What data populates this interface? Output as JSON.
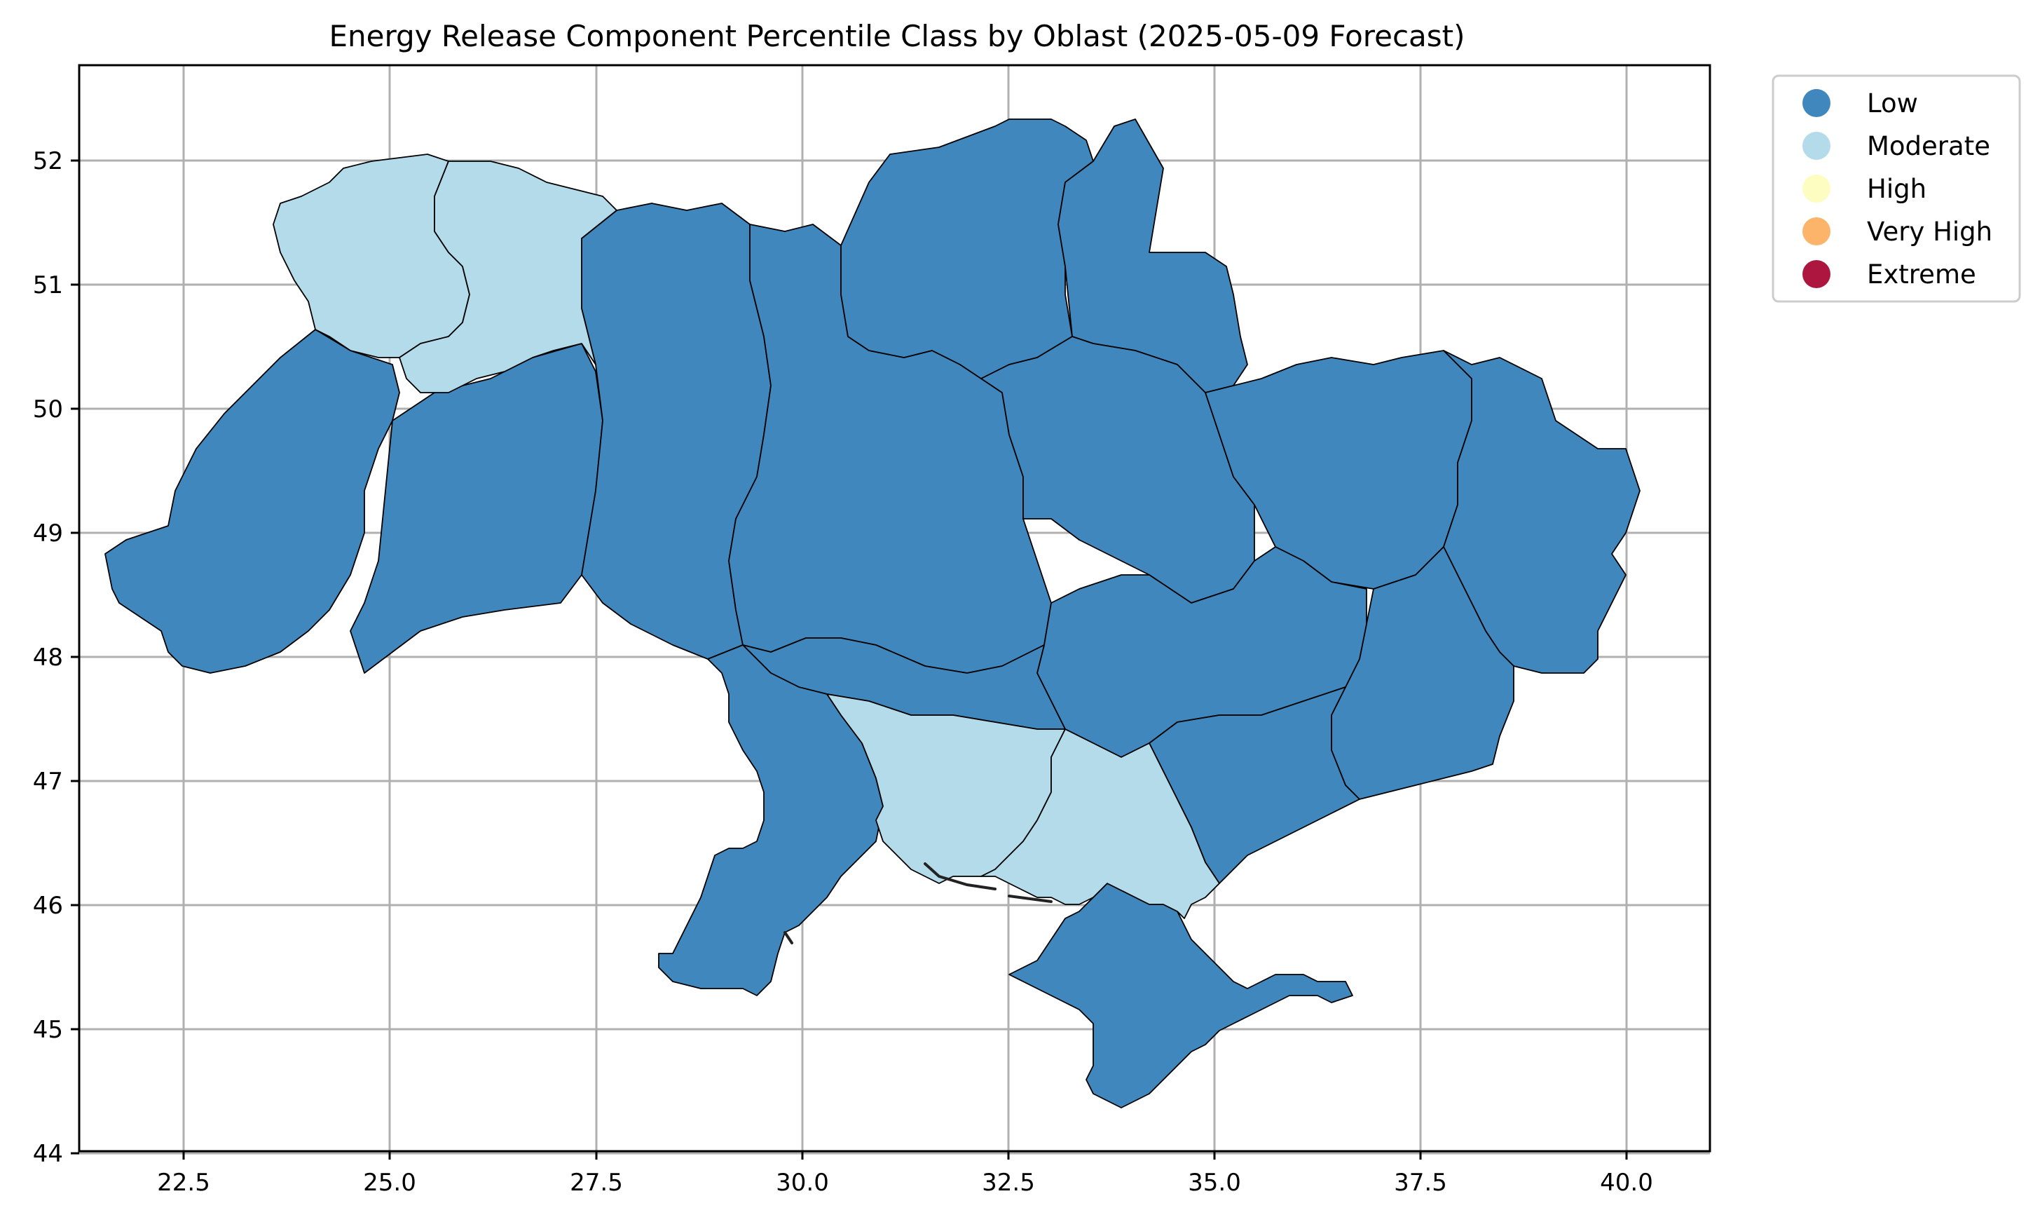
{
  "title": "Energy Release Component Percentile Class by Oblast (2025-05-09 Forecast)",
  "axes": {
    "x_ticks": [
      "22.5",
      "25.0",
      "27.5",
      "30.0",
      "32.5",
      "35.0",
      "37.5",
      "40.0"
    ],
    "y_ticks": [
      "44",
      "45",
      "46",
      "47",
      "48",
      "49",
      "50",
      "51",
      "52"
    ],
    "x_range": [
      21.3,
      41.1
    ],
    "y_range": [
      43.98,
      52.77
    ],
    "grid": true
  },
  "legend": {
    "placement": "outside-top-right",
    "items": [
      {
        "label": "Low",
        "color": "#4087bd"
      },
      {
        "label": "Moderate",
        "color": "#b3dbea"
      },
      {
        "label": "High",
        "color": "#fefdc1"
      },
      {
        "label": "Very High",
        "color": "#fcb46b"
      },
      {
        "label": "Extreme",
        "color": "#ad173f"
      }
    ]
  },
  "colors": {
    "low": "#4087bd",
    "moderate": "#b3dbea"
  }
}
